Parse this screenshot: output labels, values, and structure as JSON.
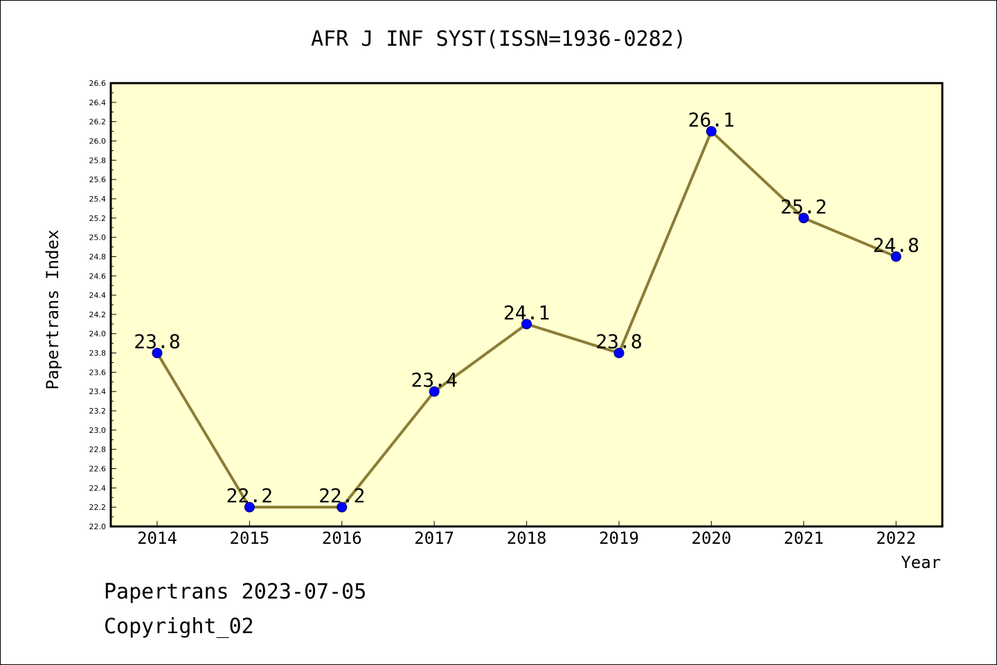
{
  "chart_data": {
    "type": "line",
    "title": "AFR J INF SYST(ISSN=1936-0282)",
    "xlabel": "Year",
    "ylabel": "Papertrans Index",
    "categories": [
      "2014",
      "2015",
      "2016",
      "2017",
      "2018",
      "2019",
      "2020",
      "2021",
      "2022"
    ],
    "series": [
      {
        "values": [
          23.8,
          22.2,
          22.2,
          23.4,
          24.1,
          23.8,
          26.1,
          25.2,
          24.8
        ]
      }
    ],
    "data_labels": [
      "23.8",
      "22.2",
      "22.2",
      "23.4",
      "24.1",
      "23.8",
      "26.1",
      "25.2",
      "24.8"
    ],
    "ylim": [
      22.0,
      26.6
    ],
    "y_ticks": [
      "22.0",
      "22.2",
      "22.4",
      "22.6",
      "22.8",
      "23.0",
      "23.2",
      "23.4",
      "23.6",
      "23.8",
      "24.0",
      "24.2",
      "24.4",
      "24.6",
      "24.8",
      "25.0",
      "25.2",
      "25.4",
      "25.6",
      "25.8",
      "26.0",
      "26.2",
      "26.4",
      "26.6"
    ],
    "grid": false,
    "legend": "none",
    "colors": {
      "plot_background": "#ffffd0",
      "line": "#8b7d35",
      "marker": "#0000ff"
    }
  },
  "footer": {
    "line1": "Papertrans 2023-07-05",
    "line2": "Copyright_02"
  }
}
